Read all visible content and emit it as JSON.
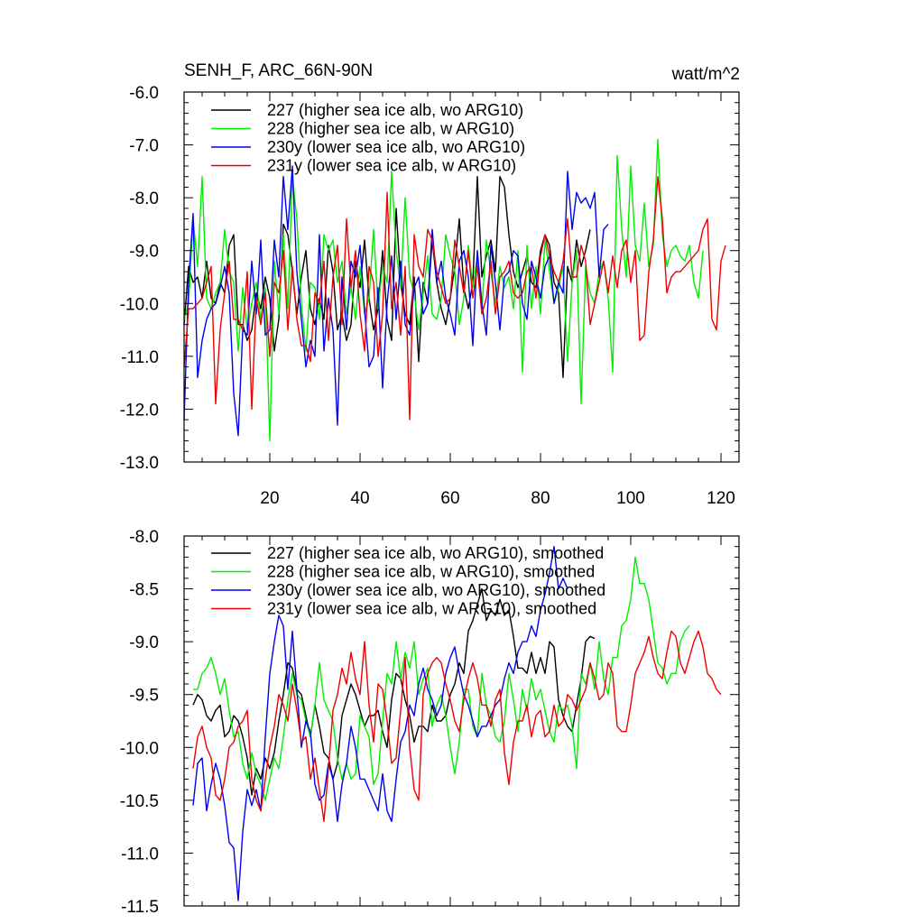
{
  "figure": {
    "title_left": "SENH_F, ARC_66N-90N",
    "title_right": "watt/m^2"
  },
  "chart_data": [
    {
      "type": "line",
      "ylim": [
        -13.0,
        -6.0
      ],
      "xlim": [
        1,
        124
      ],
      "yticks": [
        -13.0,
        -12.0,
        -11.0,
        -10.0,
        -9.0,
        -8.0,
        -7.0,
        -6.0
      ],
      "ytick_labels": [
        "-13.0",
        "-12.0",
        "-11.0",
        "-10.0",
        "-9.0",
        "-8.0",
        "-7.0",
        "-6.0"
      ],
      "xticks": [
        20,
        40,
        60,
        80,
        100,
        120
      ],
      "xtick_labels": [
        "20",
        "40",
        "60",
        "80",
        "100",
        "120"
      ],
      "series": [
        {
          "name": "227 (higher sea ice alb, wo ARG10)",
          "color": "#000000",
          "x_start": 1,
          "values": [
            -10.4,
            -9.3,
            -9.6,
            -9.5,
            -9.9,
            -9.2,
            -9.9,
            -10.0,
            -9.6,
            -9.8,
            -8.9,
            -8.7,
            -10.4,
            -10.4,
            -10.7,
            -10.5,
            -9.8,
            -10.1,
            -9.5,
            -9.9,
            -10.9,
            -10.3,
            -8.5,
            -8.7,
            -9.4,
            -10.2,
            -9.5,
            -9.0,
            -10.1,
            -10.4,
            -9.9,
            -10.3,
            -8.9,
            -9.4,
            -10.5,
            -10.2,
            -10.7,
            -10.4,
            -9.2,
            -9.7,
            -8.8,
            -9.9,
            -10.5,
            -10.1,
            -9.0,
            -10.3,
            -10.7,
            -8.2,
            -9.6,
            -10.2,
            -10.4,
            -9.5,
            -11.1,
            -9.6,
            -10.0,
            -8.8,
            -9.6,
            -10.1,
            -10.4,
            -9.9,
            -9.3,
            -8.4,
            -9.7,
            -10.1,
            -9.6,
            -7.6,
            -9.5,
            -9.1,
            -8.8,
            -9.4,
            -7.6,
            -7.8,
            -8.7,
            -9.4,
            -9.7,
            -9.4,
            -9.1,
            -9.6,
            -9.7,
            -9.0,
            -8.7,
            -8.9,
            -9.6,
            -9.8,
            -11.4,
            -9.3,
            -9.6,
            -8.8,
            -9.3,
            -9.0,
            -8.6
          ]
        },
        {
          "name": "228 (higher sea ice alb, w ARG10)",
          "color": "#00ee00",
          "x_start": 1,
          "values": [
            -10.3,
            -10.0,
            -8.4,
            -9.3,
            -7.6,
            -9.9,
            -10.1,
            -9.8,
            -9.6,
            -8.6,
            -9.4,
            -9.6,
            -10.9,
            -9.7,
            -10.5,
            -10.0,
            -9.6,
            -10.3,
            -9.7,
            -12.6,
            -9.2,
            -10.2,
            -8.7,
            -10.1,
            -7.6,
            -8.4,
            -10.0,
            -10.9,
            -9.6,
            -9.7,
            -10.3,
            -8.7,
            -9.0,
            -8.8,
            -9.6,
            -9.2,
            -10.2,
            -9.7,
            -10.3,
            -9.3,
            -10.2,
            -9.9,
            -8.6,
            -10.1,
            -9.3,
            -9.6,
            -7.5,
            -9.0,
            -9.7,
            -8.0,
            -9.5,
            -9.8,
            -10.5,
            -9.8,
            -9.1,
            -10.2,
            -10.3,
            -9.9,
            -8.7,
            -9.1,
            -9.4,
            -10.4,
            -9.9,
            -8.9,
            -9.7,
            -9.1,
            -10.1,
            -8.8,
            -9.4,
            -10.0,
            -9.3,
            -9.7,
            -9.5,
            -10.1,
            -9.0,
            -11.3,
            -8.9,
            -10.1,
            -9.3,
            -10.2,
            -8.8,
            -9.4,
            -10.0,
            -9.7,
            -9.3,
            -11.1,
            -9.6,
            -9.0,
            -11.9,
            -9.3,
            -9.8,
            -10.0,
            -9.4,
            -9.2,
            -9.9,
            -11.3,
            -7.2,
            -8.6,
            -9.5,
            -7.4,
            -8.9,
            -9.2,
            -8.1,
            -9.3,
            -8.9,
            -6.9,
            -8.7,
            -9.3,
            -9.0,
            -8.9,
            -9.1,
            -9.2,
            -8.9,
            -9.6,
            -9.9,
            -9.0
          ]
        },
        {
          "name": "230y (lower sea ice alb, wo ARG10)",
          "color": "#0000ee",
          "x_start": 1,
          "values": [
            -12.2,
            -9.6,
            -8.3,
            -11.4,
            -10.7,
            -10.3,
            -10.1,
            -10.0,
            -9.7,
            -9.3,
            -9.8,
            -11.7,
            -12.5,
            -10.5,
            -10.6,
            -9.2,
            -10.2,
            -8.8,
            -10.6,
            -10.5,
            -8.8,
            -9.5,
            -7.6,
            -8.6,
            -7.4,
            -9.4,
            -10.3,
            -11.2,
            -10.7,
            -11.0,
            -8.7,
            -10.9,
            -9.9,
            -10.5,
            -12.3,
            -9.5,
            -10.5,
            -9.2,
            -9.5,
            -8.9,
            -10.1,
            -11.2,
            -11.0,
            -9.7,
            -11.6,
            -10.0,
            -9.1,
            -10.3,
            -9.2,
            -10.4,
            -10.6,
            -9.7,
            -9.5,
            -10.2,
            -10.0,
            -8.6,
            -9.6,
            -9.2,
            -9.9,
            -10.2,
            -10.6,
            -9.2,
            -9.0,
            -9.5,
            -10.8,
            -9.0,
            -10.0,
            -10.6,
            -8.9,
            -9.6,
            -10.5,
            -9.5,
            -9.4,
            -9.0,
            -9.1,
            -10.0,
            -10.3,
            -9.2,
            -9.5,
            -9.9,
            -9.3,
            -9.1,
            -10.0,
            -9.6,
            -9.8,
            -7.5,
            -8.6,
            -7.9,
            -8.1,
            -8.0,
            -8.2,
            -7.9,
            -9.5,
            -8.6,
            -8.5
          ]
        },
        {
          "name": "231y (lower sea ice alb, w ARG10)",
          "color": "#ee0000",
          "x_start": 1,
          "values": [
            -11.2,
            -10.1,
            -10.1,
            -10.0,
            -9.9,
            -9.6,
            -9.3,
            -11.9,
            -10.5,
            -9.8,
            -9.2,
            -10.3,
            -10.3,
            -10.5,
            -9.4,
            -12.0,
            -9.9,
            -10.4,
            -9.8,
            -11.0,
            -9.6,
            -9.8,
            -9.0,
            -10.5,
            -9.3,
            -10.3,
            -10.8,
            -10.8,
            -11.1,
            -9.8,
            -10.0,
            -9.2,
            -10.7,
            -9.5,
            -8.9,
            -10.4,
            -8.4,
            -9.7,
            -9.0,
            -10.2,
            -10.9,
            -9.3,
            -9.6,
            -11.0,
            -10.2,
            -7.9,
            -10.1,
            -9.6,
            -10.6,
            -9.3,
            -12.2,
            -8.7,
            -9.3,
            -9.5,
            -8.6,
            -8.8,
            -9.4,
            -9.7,
            -10.0,
            -9.9,
            -8.8,
            -9.3,
            -9.8,
            -9.0,
            -9.9,
            -9.3,
            -10.2,
            -9.9,
            -9.2,
            -10.2,
            -9.5,
            -9.4,
            -9.2,
            -9.8,
            -9.9,
            -9.8,
            -9.4,
            -9.3,
            -9.9,
            -9.1,
            -8.7,
            -9.1,
            -9.4,
            -9.6,
            -9.2,
            -8.4,
            -9.5,
            -9.5,
            -8.9,
            -9.2,
            -10.4,
            -10.0,
            -9.6,
            -9.2,
            -9.8,
            -9.1,
            -9.7,
            -9.0,
            -8.8,
            -9.6,
            -9.0,
            -10.7,
            -10.6,
            -9.4,
            -8.8,
            -7.6,
            -8.4,
            -9.8,
            -9.5,
            -9.4,
            -9.4,
            -9.3,
            -9.2,
            -9.1,
            -9.0,
            -8.6,
            -8.4,
            -10.3,
            -10.5,
            -9.2,
            -8.9
          ]
        }
      ]
    },
    {
      "type": "line",
      "ylim": [
        -11.5,
        -8.0
      ],
      "xlim": [
        1,
        124
      ],
      "yticks": [
        -11.5,
        -11.0,
        -10.5,
        -10.0,
        -9.5,
        -9.0,
        -8.5,
        -8.0
      ],
      "ytick_labels": [
        "-11.5",
        "-11.0",
        "-10.5",
        "-10.0",
        "-9.5",
        "-9.0",
        "-8.5",
        "-8.0"
      ],
      "series": [
        {
          "name": "227 (higher sea ice alb, wo ARG10), smoothed",
          "color": "#000000",
          "x_start": 3,
          "values": [
            -9.6,
            -9.5,
            -9.55,
            -9.7,
            -9.75,
            -9.65,
            -9.6,
            -9.9,
            -9.85,
            -9.7,
            -9.75,
            -9.9,
            -10.1,
            -10.45,
            -10.2,
            -10.3,
            -10.1,
            -10.2,
            -10.05,
            -9.75,
            -9.5,
            -9.2,
            -9.25,
            -9.45,
            -9.5,
            -9.7,
            -9.9,
            -9.6,
            -9.8,
            -10.05,
            -10.1,
            -10.3,
            -10.15,
            -9.7,
            -9.55,
            -9.4,
            -9.5,
            -9.65,
            -9.8,
            -9.7,
            -9.7,
            -9.65,
            -9.85,
            -10.0,
            -9.55,
            -9.3,
            -9.35,
            -9.55,
            -9.7,
            -9.95,
            -9.8,
            -9.8,
            -9.85,
            -9.6,
            -9.75,
            -9.75,
            -9.7,
            -9.5,
            -9.4,
            -9.2,
            -9.3,
            -8.9,
            -8.8,
            -8.65,
            -8.5,
            -8.8,
            -8.7,
            -8.75,
            -8.6,
            -8.75,
            -8.7,
            -8.95,
            -9.25,
            -9.25,
            -9.3,
            -9.1,
            -9.3,
            -9.15,
            -9.3,
            -9.0,
            -9.05,
            -9.55,
            -9.7,
            -9.8,
            -9.85,
            -9.6,
            -9.35,
            -9.0,
            -8.95,
            -8.97
          ]
        },
        {
          "name": "228 (higher sea ice alb, w ARG10), smoothed",
          "color": "#00ee00",
          "x_start": 3,
          "values": [
            -9.45,
            -9.45,
            -9.3,
            -9.25,
            -9.15,
            -9.3,
            -9.5,
            -9.35,
            -9.65,
            -9.9,
            -9.85,
            -10.15,
            -10.3,
            -10.05,
            -10.25,
            -10.35,
            -10.5,
            -10.3,
            -10.1,
            -10.2,
            -9.9,
            -9.55,
            -9.3,
            -9.5,
            -9.55,
            -9.75,
            -9.9,
            -9.6,
            -9.2,
            -9.55,
            -9.65,
            -9.75,
            -10.1,
            -10.3,
            -10.15,
            -10.3,
            -10.25,
            -9.7,
            -9.8,
            -9.9,
            -10.35,
            -10.25,
            -9.75,
            -9.3,
            -9.4,
            -9.0,
            -9.35,
            -9.1,
            -9.25,
            -9.0,
            -9.5,
            -9.35,
            -9.25,
            -9.8,
            -9.6,
            -9.5,
            -9.7,
            -10.0,
            -10.25,
            -9.95,
            -9.45,
            -9.45,
            -9.8,
            -9.9,
            -9.3,
            -9.6,
            -9.7,
            -9.9,
            -9.95,
            -9.75,
            -9.3,
            -9.55,
            -9.85,
            -9.45,
            -9.65,
            -9.35,
            -9.55,
            -9.45,
            -9.65,
            -9.85,
            -9.95,
            -9.6,
            -9.65,
            -9.6,
            -9.8,
            -10.2,
            -9.3,
            -9.4,
            -9.2,
            -9.45,
            -9.0,
            -9.35,
            -9.5,
            -9.15,
            -9.15,
            -8.85,
            -8.8,
            -8.6,
            -8.2,
            -8.45,
            -8.45,
            -8.6,
            -8.9,
            -9.2,
            -9.25,
            -9.4,
            -9.3,
            -9.3,
            -9.0,
            -8.9,
            -8.85
          ]
        },
        {
          "name": "230y (lower sea ice alb, wo ARG10), smoothed",
          "color": "#0000ee",
          "x_start": 3,
          "values": [
            -10.55,
            -10.15,
            -10.1,
            -10.6,
            -10.35,
            -10.15,
            -10.3,
            -10.55,
            -10.9,
            -10.95,
            -11.45,
            -10.8,
            -10.4,
            -10.55,
            -10.4,
            -10.6,
            -9.9,
            -9.3,
            -9.0,
            -8.75,
            -8.85,
            -9.45,
            -8.9,
            -9.45,
            -10.0,
            -9.75,
            -9.85,
            -10.35,
            -10.5,
            -10.45,
            -10.15,
            -10.3,
            -10.7,
            -10.35,
            -10.15,
            -9.8,
            -10.0,
            -10.3,
            -10.3,
            -10.4,
            -10.5,
            -10.6,
            -10.25,
            -10.6,
            -10.7,
            -10.3,
            -9.95,
            -9.85,
            -9.6,
            -9.7,
            -9.4,
            -9.25,
            -9.45,
            -9.55,
            -9.7,
            -9.6,
            -9.3,
            -9.15,
            -9.05,
            -9.3,
            -9.5,
            -9.6,
            -9.75,
            -9.9,
            -9.8,
            -9.8,
            -9.7,
            -9.6,
            -9.55,
            -9.35,
            -9.2,
            -9.3,
            -9.1,
            -9.0,
            -9.0,
            -8.85,
            -8.95,
            -8.7,
            -8.55,
            -8.35,
            -8.1,
            -8.5,
            -8.4,
            -8.5
          ]
        },
        {
          "name": "231y (lower sea ice alb, w ARG10), smoothed",
          "color": "#ee0000",
          "x_start": 3,
          "values": [
            -10.2,
            -9.9,
            -9.8,
            -10.0,
            -10.1,
            -10.45,
            -10.5,
            -10.3,
            -10.0,
            -9.95,
            -9.8,
            -9.75,
            -9.65,
            -10.3,
            -10.5,
            -10.6,
            -10.3,
            -10.0,
            -9.8,
            -9.5,
            -9.6,
            -9.75,
            -9.4,
            -9.65,
            -9.95,
            -9.9,
            -10.3,
            -10.1,
            -10.4,
            -10.7,
            -10.2,
            -9.65,
            -9.5,
            -9.25,
            -9.4,
            -9.1,
            -9.35,
            -9.5,
            -9.0,
            -9.6,
            -9.95,
            -9.4,
            -9.45,
            -9.75,
            -10.15,
            -10.1,
            -9.65,
            -9.15,
            -10.0,
            -10.4,
            -10.5,
            -9.5,
            -9.3,
            -9.2,
            -9.15,
            -9.2,
            -9.4,
            -9.55,
            -9.75,
            -9.85,
            -9.55,
            -9.35,
            -9.2,
            -9.35,
            -9.6,
            -9.6,
            -9.8,
            -9.55,
            -9.45,
            -10.05,
            -10.35,
            -9.95,
            -9.75,
            -9.75,
            -9.6,
            -9.9,
            -9.7,
            -9.65,
            -9.9,
            -9.85,
            -9.6,
            -9.8,
            -9.75,
            -9.5,
            -9.55,
            -9.65,
            -9.55,
            -9.45,
            -9.2,
            -9.35,
            -9.55,
            -9.5,
            -9.2,
            -9.3,
            -9.8,
            -9.85,
            -9.85,
            -9.6,
            -9.3,
            -9.2,
            -9.1,
            -8.95,
            -9.15,
            -9.3,
            -9.35,
            -9.1,
            -8.9,
            -8.95,
            -9.2,
            -9.3,
            -9.15,
            -9.0,
            -8.9,
            -9.05,
            -9.3,
            -9.35,
            -9.45,
            -9.5
          ]
        }
      ]
    }
  ]
}
